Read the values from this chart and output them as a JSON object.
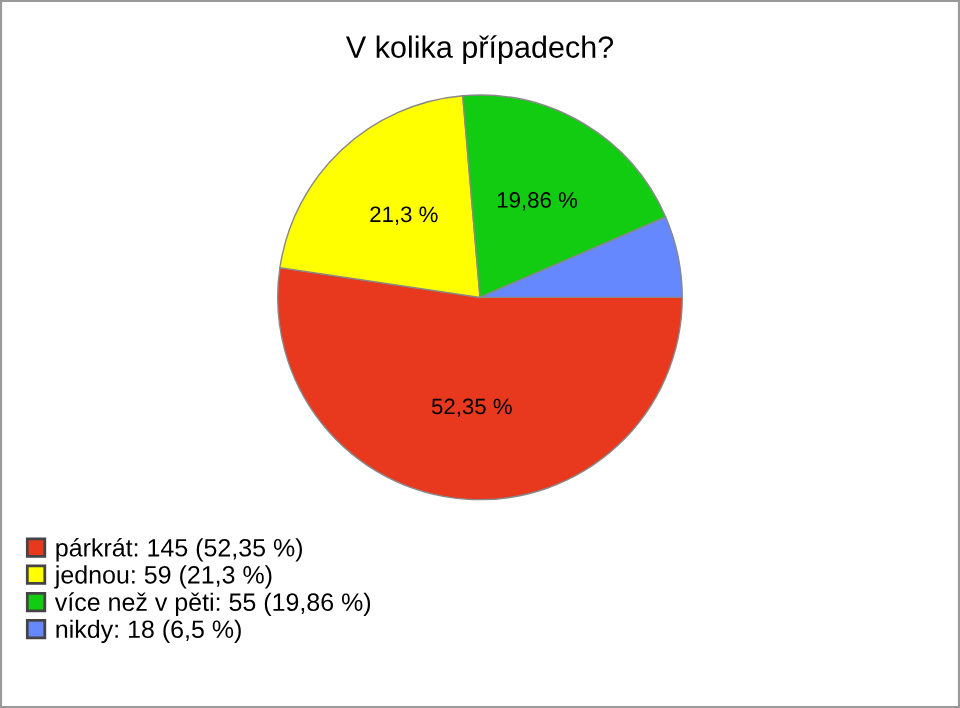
{
  "chart_data": {
    "type": "pie",
    "title": "V kolika případech?",
    "categories": [
      "párkrát: 145 (52,35 %)",
      "jednou: 59 (21,3 %)",
      "více než v pěti: 55 (19,86 %)",
      "nikdy: 18 (6,5 %)"
    ],
    "values": [
      52.35,
      21.3,
      19.86,
      6.5
    ],
    "value_labels": [
      "52,35 %",
      "21,3 %",
      "19,86 %",
      null
    ],
    "colors": [
      "#e8381e",
      "#ffff00",
      "#11cc11",
      "#6688ff"
    ],
    "legend": "bottom left"
  }
}
